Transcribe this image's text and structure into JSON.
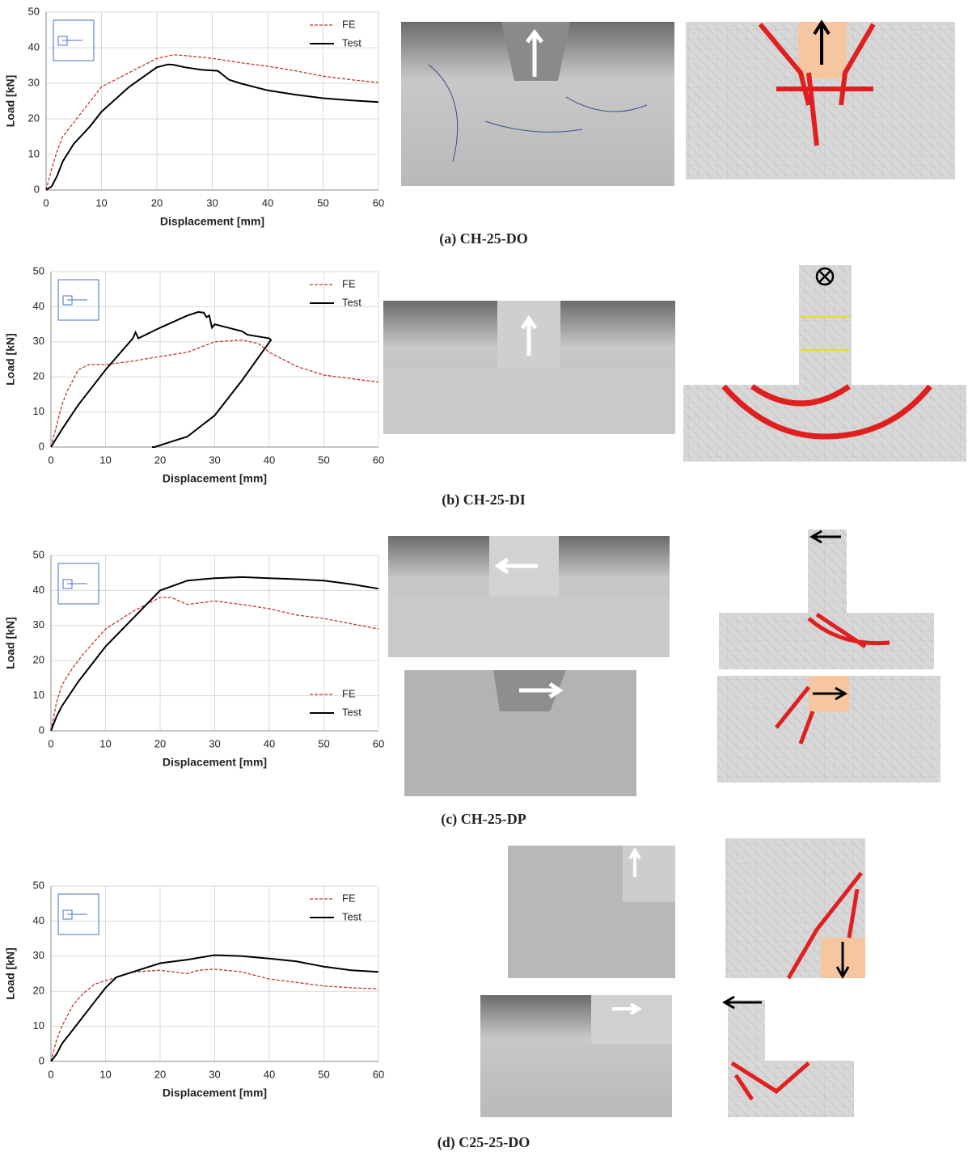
{
  "chart_data": [
    {
      "type": "line",
      "caption": "(a) CH-25-DO",
      "xlabel": "Displacement [mm]",
      "ylabel": "Load [kN]",
      "xlim": [
        0,
        60
      ],
      "xticks": [
        0,
        10,
        20,
        30,
        40,
        50,
        60
      ],
      "ylim": [
        0,
        50
      ],
      "yticks": [
        0,
        10,
        20,
        30,
        40,
        50
      ],
      "grid": true,
      "legend": "upper right",
      "series": [
        {
          "name": "FE",
          "color": "#c0392b",
          "dashed": true,
          "x": [
            0,
            1,
            2,
            3,
            5,
            8,
            10,
            15,
            20,
            23,
            25,
            30,
            35,
            40,
            45,
            50,
            55,
            60
          ],
          "values": [
            0,
            6,
            11,
            15,
            19,
            25,
            29,
            33,
            37,
            38,
            37.8,
            37,
            35.8,
            34.8,
            33.5,
            32,
            31,
            30.2
          ]
        },
        {
          "name": "Test",
          "color": "#000000",
          "dashed": false,
          "x": [
            0,
            1,
            2,
            3,
            5,
            8,
            10,
            15,
            20,
            22,
            23,
            25,
            28,
            31,
            33,
            35,
            40,
            45,
            50,
            55,
            60
          ],
          "values": [
            0,
            1,
            4,
            8,
            13,
            18,
            22,
            29,
            34.5,
            35.3,
            35.2,
            34.5,
            33.8,
            33.5,
            31,
            30,
            28,
            26.8,
            25.8,
            25.2,
            24.7
          ]
        }
      ]
    },
    {
      "type": "line",
      "caption": "(b) CH-25-DI",
      "xlabel": "Displacement [mm]",
      "ylabel": "Load [kN]",
      "xlim": [
        0,
        60
      ],
      "xticks": [
        0,
        10,
        20,
        30,
        40,
        50,
        60
      ],
      "ylim": [
        0,
        50
      ],
      "yticks": [
        0,
        10,
        20,
        30,
        40,
        50
      ],
      "grid": true,
      "legend": "upper right",
      "series": [
        {
          "name": "FE",
          "color": "#c0392b",
          "dashed": true,
          "x": [
            0,
            1,
            2,
            3,
            5,
            7,
            10,
            15,
            20,
            25,
            30,
            35,
            38,
            40,
            45,
            50,
            55,
            60
          ],
          "values": [
            0,
            6,
            12,
            16,
            22,
            23.5,
            23.5,
            24.5,
            25.8,
            27,
            30,
            30.5,
            29.5,
            27,
            23,
            20.5,
            19.5,
            18.5
          ]
        },
        {
          "name": "Test",
          "color": "#000000",
          "dashed": false,
          "x": [
            0,
            2,
            5,
            10,
            15,
            15.5,
            16,
            20,
            25,
            27,
            28,
            28.5,
            29,
            29.5,
            30,
            35,
            36,
            40,
            40.3,
            35,
            30,
            25,
            20,
            19,
            18.5
          ],
          "values": [
            0,
            5,
            12,
            22,
            31,
            32.7,
            31,
            34,
            37.5,
            38.5,
            38.3,
            37,
            37.5,
            34,
            35,
            33,
            32,
            31,
            30.5,
            19,
            9,
            3,
            0.5,
            0,
            0
          ]
        }
      ]
    },
    {
      "type": "line",
      "caption": "(c) CH-25-DP",
      "xlabel": "Displacement [mm]",
      "ylabel": "Load [kN]",
      "xlim": [
        0,
        60
      ],
      "xticks": [
        0,
        10,
        20,
        30,
        40,
        50,
        60
      ],
      "ylim": [
        0,
        50
      ],
      "yticks": [
        0,
        10,
        20,
        30,
        40,
        50
      ],
      "grid": true,
      "legend": "lower right",
      "series": [
        {
          "name": "FE",
          "color": "#c0392b",
          "dashed": true,
          "x": [
            0,
            1,
            2,
            4,
            6,
            10,
            15,
            20,
            22,
            25,
            30,
            35,
            40,
            45,
            50,
            55,
            60
          ],
          "values": [
            0,
            8,
            13,
            18,
            22,
            29,
            34,
            38,
            38,
            36,
            37,
            36,
            34.8,
            33,
            32,
            30.5,
            29
          ]
        },
        {
          "name": "Test",
          "color": "#000000",
          "dashed": false,
          "x": [
            0,
            1,
            2,
            5,
            10,
            15,
            20,
            25,
            30,
            35,
            40,
            45,
            50,
            55,
            60
          ],
          "values": [
            0,
            4,
            7,
            14,
            24,
            32,
            40,
            42.8,
            43.5,
            43.8,
            43.5,
            43.2,
            42.8,
            41.8,
            40.5
          ]
        }
      ]
    },
    {
      "type": "line",
      "caption": "(d) C25-25-DO",
      "xlabel": "Displacement [mm]",
      "ylabel": "Load [kN]",
      "xlim": [
        0,
        60
      ],
      "xticks": [
        0,
        10,
        20,
        30,
        40,
        50,
        60
      ],
      "ylim": [
        0,
        50
      ],
      "yticks": [
        0,
        10,
        20,
        30,
        40,
        50
      ],
      "grid": true,
      "legend": "upper right",
      "series": [
        {
          "name": "FE",
          "color": "#c0392b",
          "dashed": true,
          "x": [
            0,
            1,
            2,
            4,
            6,
            8,
            10,
            15,
            20,
            25,
            27,
            30,
            35,
            40,
            45,
            50,
            55,
            60
          ],
          "values": [
            0,
            6,
            10,
            16,
            19.5,
            22,
            23,
            25.5,
            26,
            25,
            26,
            26.3,
            25.5,
            23.5,
            22.5,
            21.5,
            21,
            20.7
          ]
        },
        {
          "name": "Test",
          "color": "#000000",
          "dashed": false,
          "x": [
            0,
            1,
            2,
            5,
            8,
            10,
            12,
            15,
            20,
            25,
            30,
            35,
            40,
            45,
            50,
            55,
            60
          ],
          "values": [
            0,
            2,
            5,
            11,
            17,
            21,
            24,
            25.5,
            28,
            29,
            30.3,
            30,
            29.3,
            28.5,
            27,
            26,
            25.5
          ]
        }
      ]
    }
  ]
}
